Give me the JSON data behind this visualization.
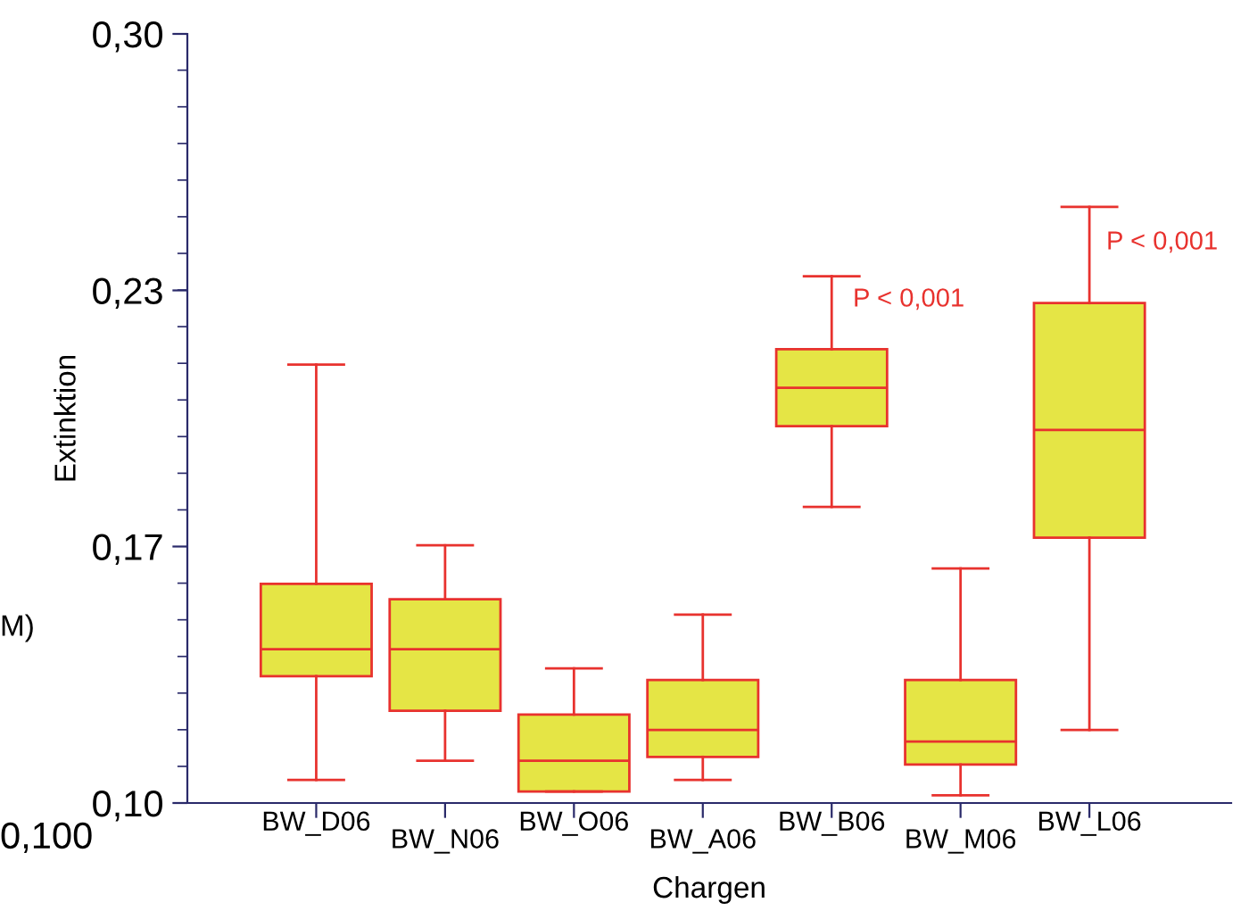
{
  "chart_data": {
    "type": "box",
    "xlabel": "Chargen",
    "ylabel": "Extinktion",
    "categories": [
      "BW_D06",
      "BW_N06",
      "BW_O06",
      "BW_A06",
      "BW_B06",
      "BW_M06",
      "BW_L06"
    ],
    "boxes": [
      {
        "low": 0.106,
        "q1": 0.133,
        "median": 0.14,
        "q3": 0.157,
        "high": 0.214
      },
      {
        "low": 0.111,
        "q1": 0.124,
        "median": 0.14,
        "q3": 0.153,
        "high": 0.167
      },
      {
        "low": 0.103,
        "q1": 0.103,
        "median": 0.111,
        "q3": 0.123,
        "high": 0.135
      },
      {
        "low": 0.106,
        "q1": 0.112,
        "median": 0.119,
        "q3": 0.132,
        "high": 0.149
      },
      {
        "low": 0.177,
        "q1": 0.198,
        "median": 0.208,
        "q3": 0.218,
        "high": 0.237
      },
      {
        "low": 0.102,
        "q1": 0.11,
        "median": 0.116,
        "q3": 0.132,
        "high": 0.161
      },
      {
        "low": 0.119,
        "q1": 0.169,
        "median": 0.197,
        "q3": 0.23,
        "high": 0.255
      }
    ],
    "color": "#e5e545",
    "ylim": [
      0.1,
      0.3
    ],
    "yticks": [
      {
        "value": 0.1,
        "label": "0,10"
      },
      {
        "value": 0.1667,
        "label": "0,17"
      },
      {
        "value": 0.2333,
        "label": "0,23"
      },
      {
        "value": 0.3,
        "label": "0,30"
      }
    ],
    "grid": false,
    "legend": false,
    "annotations": [
      "P < 0,001",
      "P < 0,001",
      "M)",
      "0,100"
    ]
  }
}
